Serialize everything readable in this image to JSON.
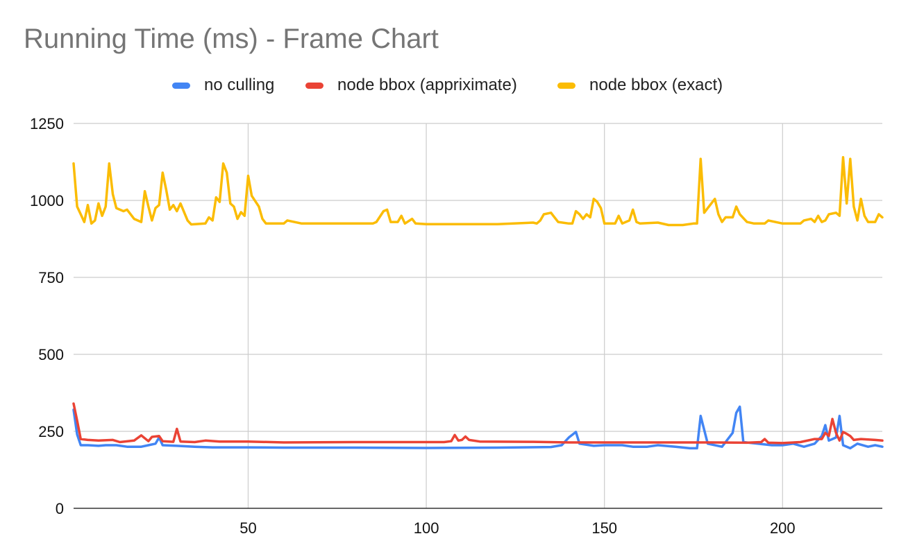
{
  "chart_data": {
    "type": "line",
    "title": "Running Time (ms) - Frame Chart",
    "xlabel": "",
    "ylabel": "",
    "xlim": [
      1,
      228
    ],
    "ylim": [
      0,
      1250
    ],
    "x_ticks": [
      50,
      100,
      150,
      200
    ],
    "y_ticks": [
      0,
      250,
      500,
      750,
      1000,
      1250
    ],
    "grid": true,
    "legend_position": "top-center",
    "series": [
      {
        "name": "no culling",
        "color": "#4285F4",
        "points": [
          [
            1,
            320
          ],
          [
            2,
            240
          ],
          [
            3,
            205
          ],
          [
            5,
            205
          ],
          [
            8,
            203
          ],
          [
            10,
            205
          ],
          [
            13,
            205
          ],
          [
            16,
            200
          ],
          [
            20,
            200
          ],
          [
            22,
            205
          ],
          [
            24,
            210
          ],
          [
            25,
            230
          ],
          [
            26,
            205
          ],
          [
            30,
            203
          ],
          [
            35,
            200
          ],
          [
            40,
            198
          ],
          [
            50,
            198
          ],
          [
            60,
            197
          ],
          [
            80,
            197
          ],
          [
            100,
            196
          ],
          [
            120,
            197
          ],
          [
            135,
            199
          ],
          [
            138,
            205
          ],
          [
            140,
            230
          ],
          [
            142,
            248
          ],
          [
            143,
            210
          ],
          [
            147,
            203
          ],
          [
            150,
            205
          ],
          [
            155,
            205
          ],
          [
            158,
            200
          ],
          [
            162,
            200
          ],
          [
            165,
            205
          ],
          [
            170,
            200
          ],
          [
            174,
            195
          ],
          [
            176,
            195
          ],
          [
            177,
            300
          ],
          [
            179,
            210
          ],
          [
            183,
            200
          ],
          [
            186,
            245
          ],
          [
            187,
            310
          ],
          [
            188,
            330
          ],
          [
            189,
            215
          ],
          [
            193,
            210
          ],
          [
            197,
            205
          ],
          [
            200,
            205
          ],
          [
            203,
            210
          ],
          [
            206,
            200
          ],
          [
            209,
            210
          ],
          [
            211,
            235
          ],
          [
            212,
            270
          ],
          [
            213,
            220
          ],
          [
            215,
            230
          ],
          [
            216,
            300
          ],
          [
            217,
            205
          ],
          [
            219,
            195
          ],
          [
            221,
            210
          ],
          [
            224,
            200
          ],
          [
            226,
            205
          ],
          [
            228,
            200
          ]
        ]
      },
      {
        "name": "node bbox (appriximate)",
        "color": "#EA4335",
        "points": [
          [
            1,
            340
          ],
          [
            2,
            285
          ],
          [
            3,
            225
          ],
          [
            5,
            222
          ],
          [
            8,
            220
          ],
          [
            12,
            222
          ],
          [
            14,
            215
          ],
          [
            18,
            220
          ],
          [
            20,
            237
          ],
          [
            22,
            218
          ],
          [
            23,
            232
          ],
          [
            25,
            235
          ],
          [
            26,
            218
          ],
          [
            29,
            216
          ],
          [
            30,
            258
          ],
          [
            31,
            217
          ],
          [
            35,
            215
          ],
          [
            38,
            220
          ],
          [
            42,
            217
          ],
          [
            50,
            217
          ],
          [
            60,
            214
          ],
          [
            80,
            215
          ],
          [
            100,
            215
          ],
          [
            105,
            215
          ],
          [
            107,
            218
          ],
          [
            108,
            238
          ],
          [
            109,
            220
          ],
          [
            110,
            222
          ],
          [
            111,
            233
          ],
          [
            112,
            222
          ],
          [
            115,
            217
          ],
          [
            130,
            216
          ],
          [
            140,
            214
          ],
          [
            160,
            214
          ],
          [
            180,
            214
          ],
          [
            190,
            213
          ],
          [
            194,
            215
          ],
          [
            195,
            225
          ],
          [
            196,
            213
          ],
          [
            200,
            212
          ],
          [
            205,
            215
          ],
          [
            209,
            225
          ],
          [
            211,
            225
          ],
          [
            212,
            245
          ],
          [
            213,
            235
          ],
          [
            214,
            290
          ],
          [
            215,
            245
          ],
          [
            216,
            220
          ],
          [
            217,
            248
          ],
          [
            218,
            242
          ],
          [
            219,
            235
          ],
          [
            220,
            222
          ],
          [
            222,
            225
          ],
          [
            226,
            222
          ],
          [
            228,
            220
          ]
        ]
      },
      {
        "name": "node bbox (exact)",
        "color": "#FBBC04",
        "points": [
          [
            1,
            1120
          ],
          [
            2,
            980
          ],
          [
            3,
            955
          ],
          [
            4,
            930
          ],
          [
            5,
            985
          ],
          [
            6,
            925
          ],
          [
            7,
            935
          ],
          [
            8,
            990
          ],
          [
            9,
            950
          ],
          [
            10,
            980
          ],
          [
            11,
            1120
          ],
          [
            12,
            1020
          ],
          [
            13,
            975
          ],
          [
            15,
            965
          ],
          [
            16,
            970
          ],
          [
            18,
            940
          ],
          [
            20,
            930
          ],
          [
            21,
            1030
          ],
          [
            22,
            980
          ],
          [
            23,
            935
          ],
          [
            24,
            975
          ],
          [
            25,
            985
          ],
          [
            26,
            1090
          ],
          [
            27,
            1035
          ],
          [
            28,
            970
          ],
          [
            29,
            985
          ],
          [
            30,
            965
          ],
          [
            31,
            990
          ],
          [
            33,
            935
          ],
          [
            34,
            922
          ],
          [
            38,
            925
          ],
          [
            39,
            945
          ],
          [
            40,
            935
          ],
          [
            41,
            1010
          ],
          [
            42,
            995
          ],
          [
            43,
            1120
          ],
          [
            44,
            1090
          ],
          [
            45,
            990
          ],
          [
            46,
            980
          ],
          [
            47,
            940
          ],
          [
            48,
            962
          ],
          [
            49,
            950
          ],
          [
            50,
            1080
          ],
          [
            51,
            1015
          ],
          [
            53,
            980
          ],
          [
            54,
            940
          ],
          [
            55,
            925
          ],
          [
            60,
            925
          ],
          [
            61,
            935
          ],
          [
            65,
            925
          ],
          [
            70,
            925
          ],
          [
            80,
            925
          ],
          [
            85,
            925
          ],
          [
            86,
            930
          ],
          [
            88,
            965
          ],
          [
            89,
            970
          ],
          [
            90,
            930
          ],
          [
            92,
            930
          ],
          [
            93,
            950
          ],
          [
            94,
            925
          ],
          [
            96,
            940
          ],
          [
            97,
            925
          ],
          [
            100,
            923
          ],
          [
            120,
            923
          ],
          [
            130,
            928
          ],
          [
            131,
            925
          ],
          [
            132,
            935
          ],
          [
            133,
            955
          ],
          [
            135,
            960
          ],
          [
            136,
            945
          ],
          [
            137,
            930
          ],
          [
            140,
            925
          ],
          [
            141,
            925
          ],
          [
            142,
            965
          ],
          [
            143,
            955
          ],
          [
            144,
            940
          ],
          [
            145,
            955
          ],
          [
            146,
            945
          ],
          [
            147,
            1005
          ],
          [
            148,
            995
          ],
          [
            149,
            975
          ],
          [
            150,
            925
          ],
          [
            153,
            925
          ],
          [
            154,
            950
          ],
          [
            155,
            925
          ],
          [
            157,
            935
          ],
          [
            158,
            970
          ],
          [
            159,
            930
          ],
          [
            160,
            925
          ],
          [
            165,
            928
          ],
          [
            168,
            920
          ],
          [
            172,
            920
          ],
          [
            175,
            925
          ],
          [
            176,
            925
          ],
          [
            177,
            1135
          ],
          [
            178,
            960
          ],
          [
            179,
            975
          ],
          [
            181,
            1005
          ],
          [
            182,
            955
          ],
          [
            183,
            930
          ],
          [
            184,
            945
          ],
          [
            186,
            945
          ],
          [
            187,
            980
          ],
          [
            188,
            955
          ],
          [
            190,
            930
          ],
          [
            192,
            925
          ],
          [
            195,
            925
          ],
          [
            196,
            935
          ],
          [
            200,
            925
          ],
          [
            205,
            925
          ],
          [
            206,
            935
          ],
          [
            208,
            940
          ],
          [
            209,
            930
          ],
          [
            210,
            950
          ],
          [
            211,
            930
          ],
          [
            212,
            935
          ],
          [
            213,
            955
          ],
          [
            215,
            960
          ],
          [
            216,
            950
          ],
          [
            217,
            1140
          ],
          [
            218,
            990
          ],
          [
            219,
            1135
          ],
          [
            220,
            980
          ],
          [
            221,
            935
          ],
          [
            222,
            1005
          ],
          [
            223,
            950
          ],
          [
            224,
            930
          ],
          [
            226,
            930
          ],
          [
            227,
            955
          ],
          [
            228,
            945
          ]
        ]
      }
    ]
  }
}
